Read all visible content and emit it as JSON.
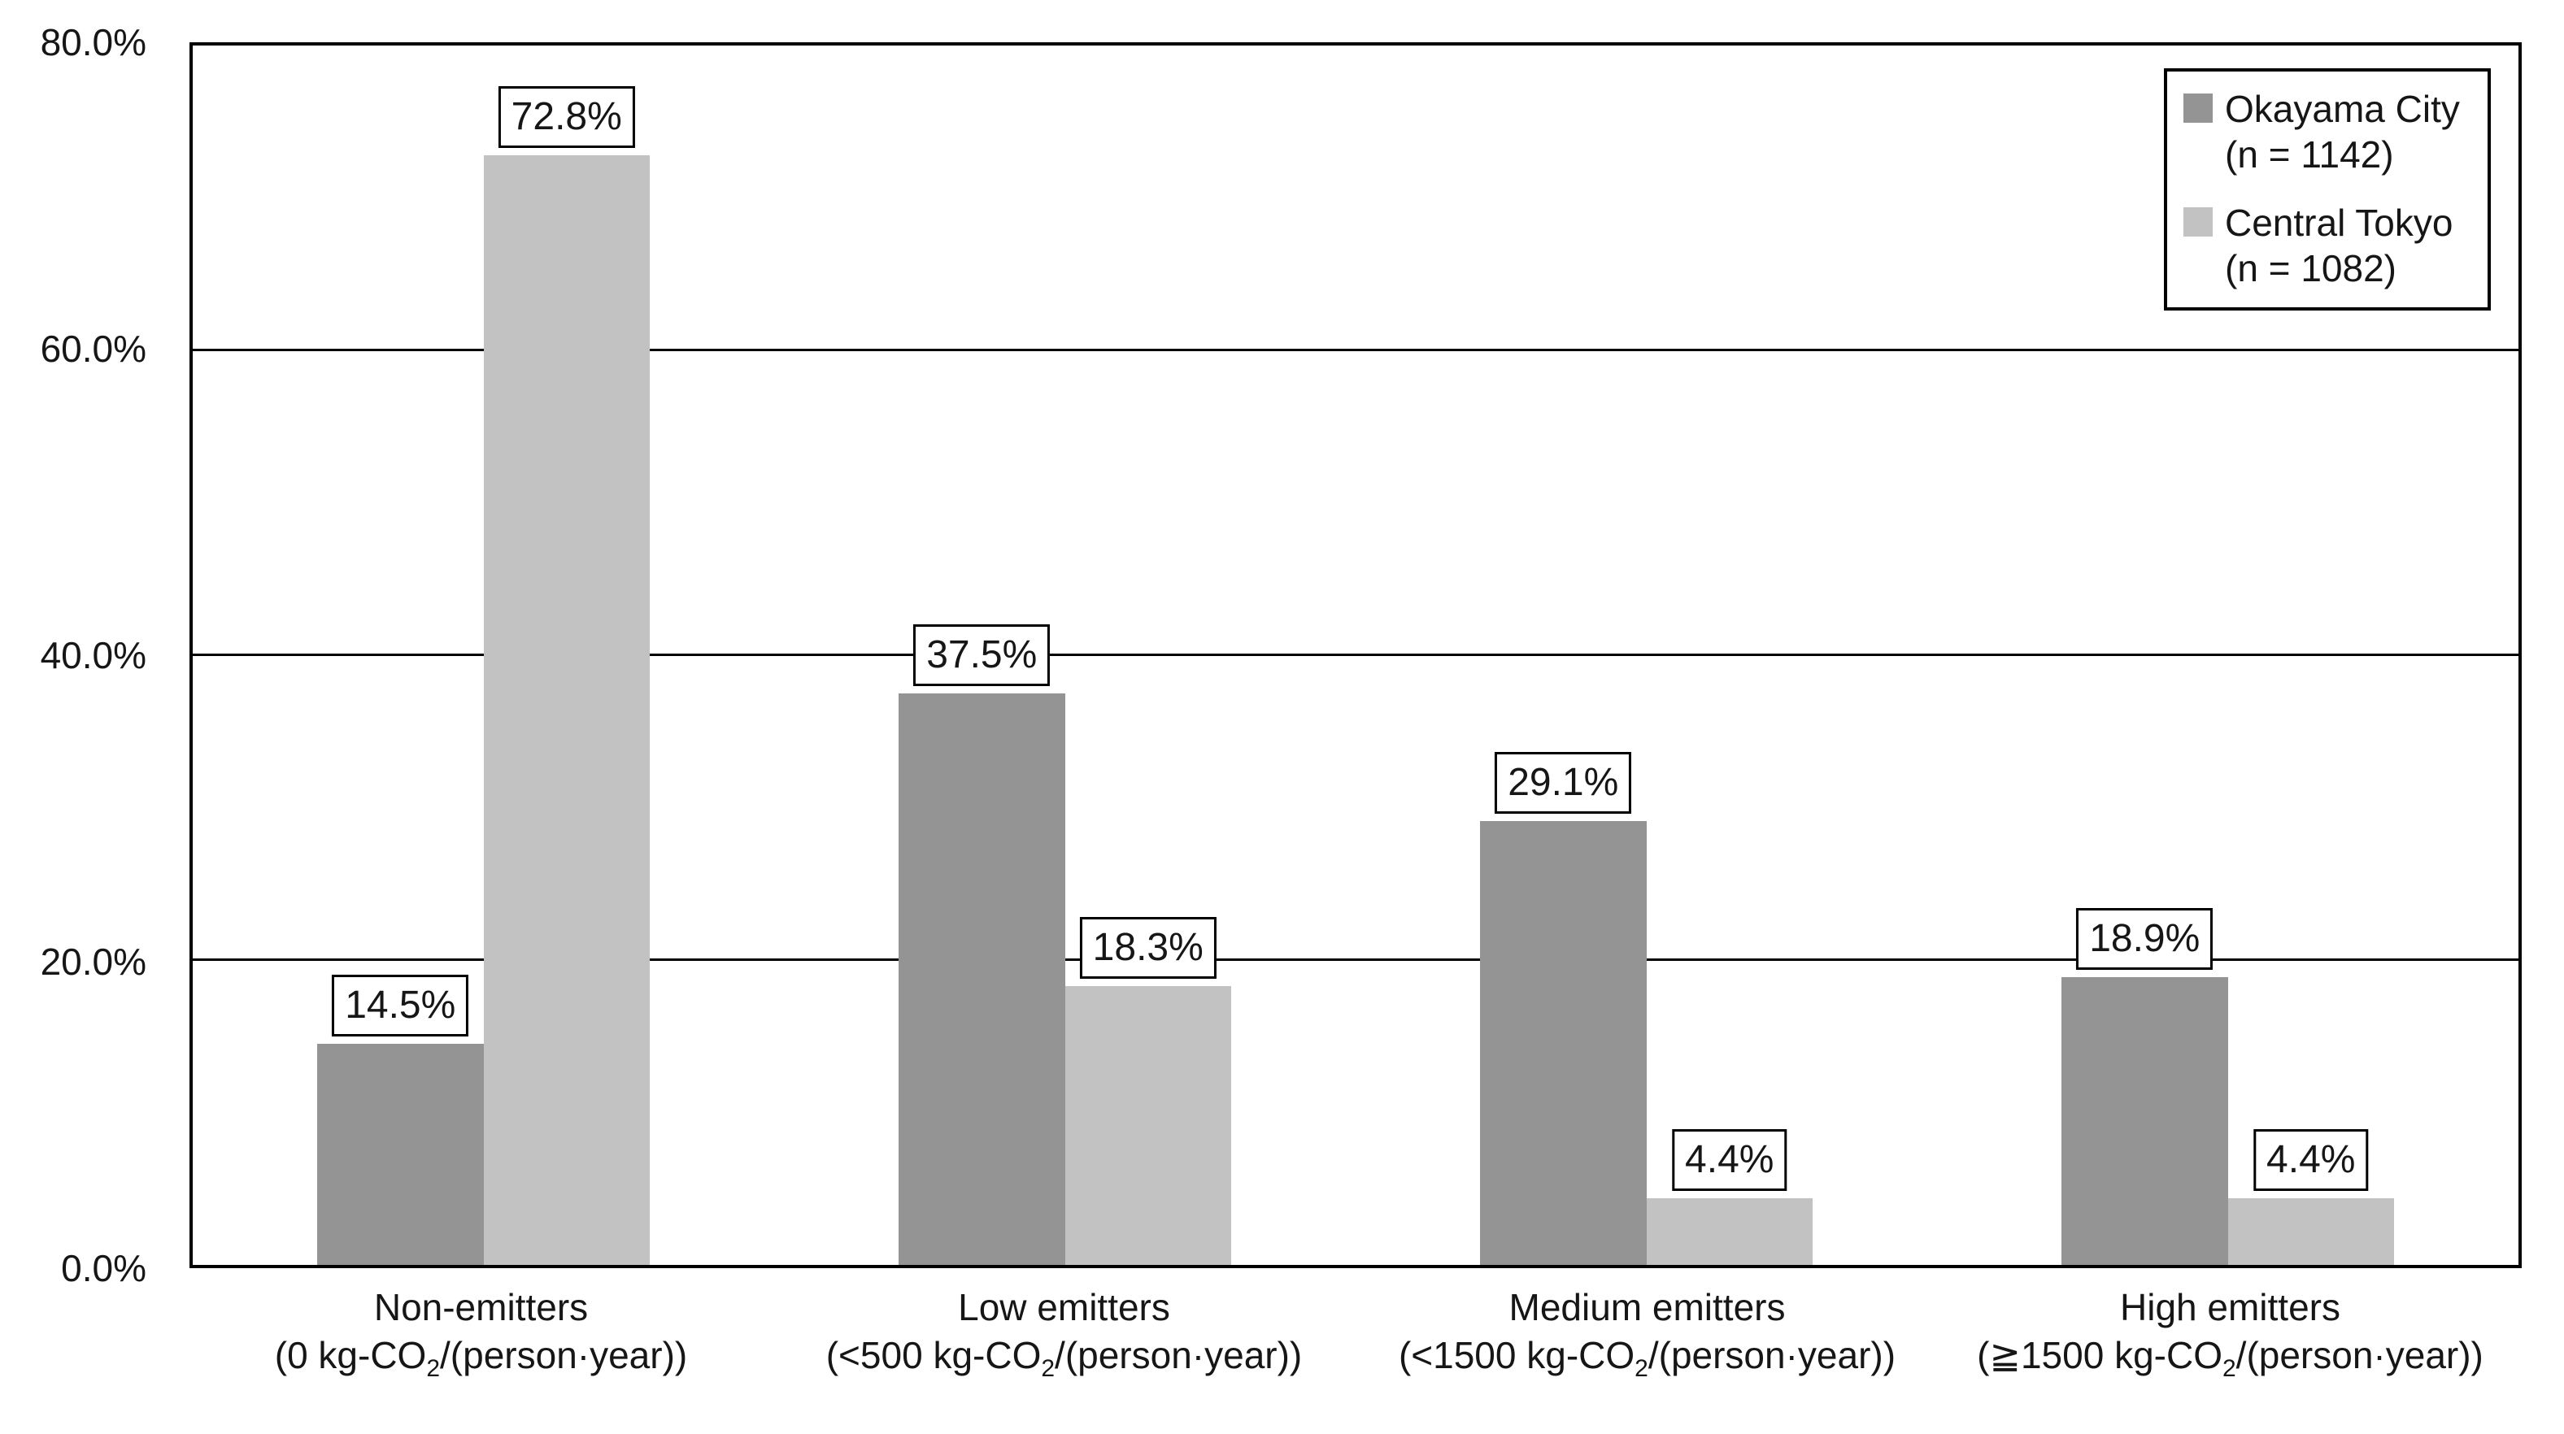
{
  "chart_data": {
    "type": "bar",
    "title": "",
    "xlabel": "",
    "ylabel": "",
    "ylim": [
      0,
      80
    ],
    "yticks": [
      "80.0%",
      "60.0%",
      "40.0%",
      "20.0%",
      "0.0%"
    ],
    "grid": "horizontal gridlines every 20%",
    "legend_position": "top-right inside plot area",
    "categories": [
      {
        "name": "Non-emitters",
        "range_prefix": "(0 kg-CO",
        "range_sub": "2",
        "range_suffix": "/(person·year))"
      },
      {
        "name": "Low emitters",
        "range_prefix": "(<500 kg-CO",
        "range_sub": "2",
        "range_suffix": "/(person·year))"
      },
      {
        "name": "Medium emitters",
        "range_prefix": "(<1500 kg-CO",
        "range_sub": "2",
        "range_suffix": "/(person·year))"
      },
      {
        "name": "High emitters",
        "range_prefix": "(≧1500 kg-CO",
        "range_sub": "2",
        "range_suffix": "/(person·year))"
      }
    ],
    "series": [
      {
        "name": "Okayama City",
        "n_label": "(n = 1142)",
        "color": "#949494",
        "values": [
          14.5,
          37.5,
          29.1,
          18.9
        ],
        "labels": [
          "14.5%",
          "37.5%",
          "29.1%",
          "18.9%"
        ]
      },
      {
        "name": "Central Tokyo",
        "n_label": "(n = 1082)",
        "color": "#c2c2c2",
        "values": [
          72.8,
          18.3,
          4.4,
          4.4
        ],
        "labels": [
          "72.8%",
          "18.3%",
          "4.4%",
          "4.4%"
        ]
      }
    ]
  }
}
